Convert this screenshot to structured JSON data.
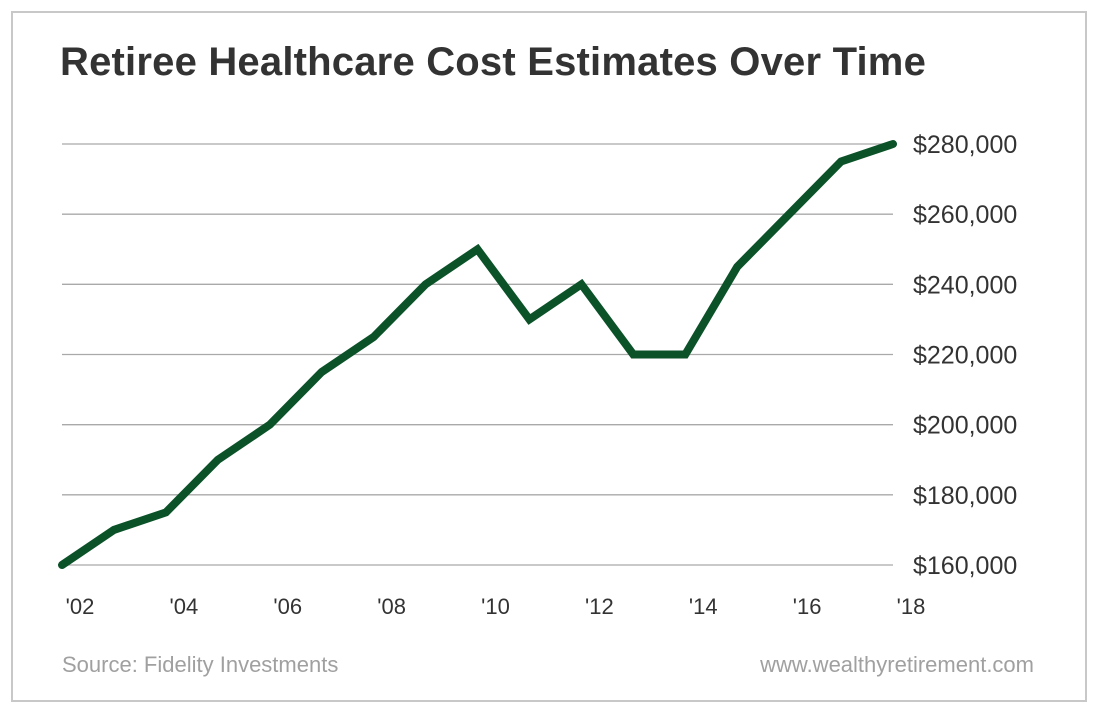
{
  "chart_data": {
    "type": "line",
    "title": "Retiree Healthcare Cost Estimates Over Time",
    "x": [
      2002,
      2003,
      2004,
      2005,
      2006,
      2007,
      2008,
      2009,
      2010,
      2011,
      2012,
      2013,
      2014,
      2015,
      2016,
      2017,
      2018
    ],
    "series": [
      {
        "values": [
          160000,
          170000,
          175000,
          190000,
          200000,
          215000,
          225000,
          240000,
          250000,
          230000,
          240000,
          220000,
          220000,
          245000,
          260000,
          275000,
          280000
        ]
      }
    ],
    "x_tick_labels": [
      "'02",
      "'04",
      "'06",
      "'08",
      "'10",
      "'12",
      "'14",
      "'16",
      "'18"
    ],
    "x_tick_values": [
      2002,
      2004,
      2006,
      2008,
      2010,
      2012,
      2014,
      2016,
      2018
    ],
    "y_tick_labels": [
      "$160,000",
      "$180,000",
      "$200,000",
      "$220,000",
      "$240,000",
      "$260,000",
      "$280,000"
    ],
    "y_tick_values": [
      160000,
      180000,
      200000,
      220000,
      240000,
      260000,
      280000
    ],
    "xlim": [
      2002,
      2018
    ],
    "ylim": [
      160000,
      280000
    ],
    "grid": "horizontal",
    "y_axis_side": "right",
    "line_color": "#0b5229",
    "grid_color": "#a9a9a9"
  },
  "footer": {
    "source": "Source: Fidelity Investments",
    "website": "www.wealthyretirement.com"
  }
}
